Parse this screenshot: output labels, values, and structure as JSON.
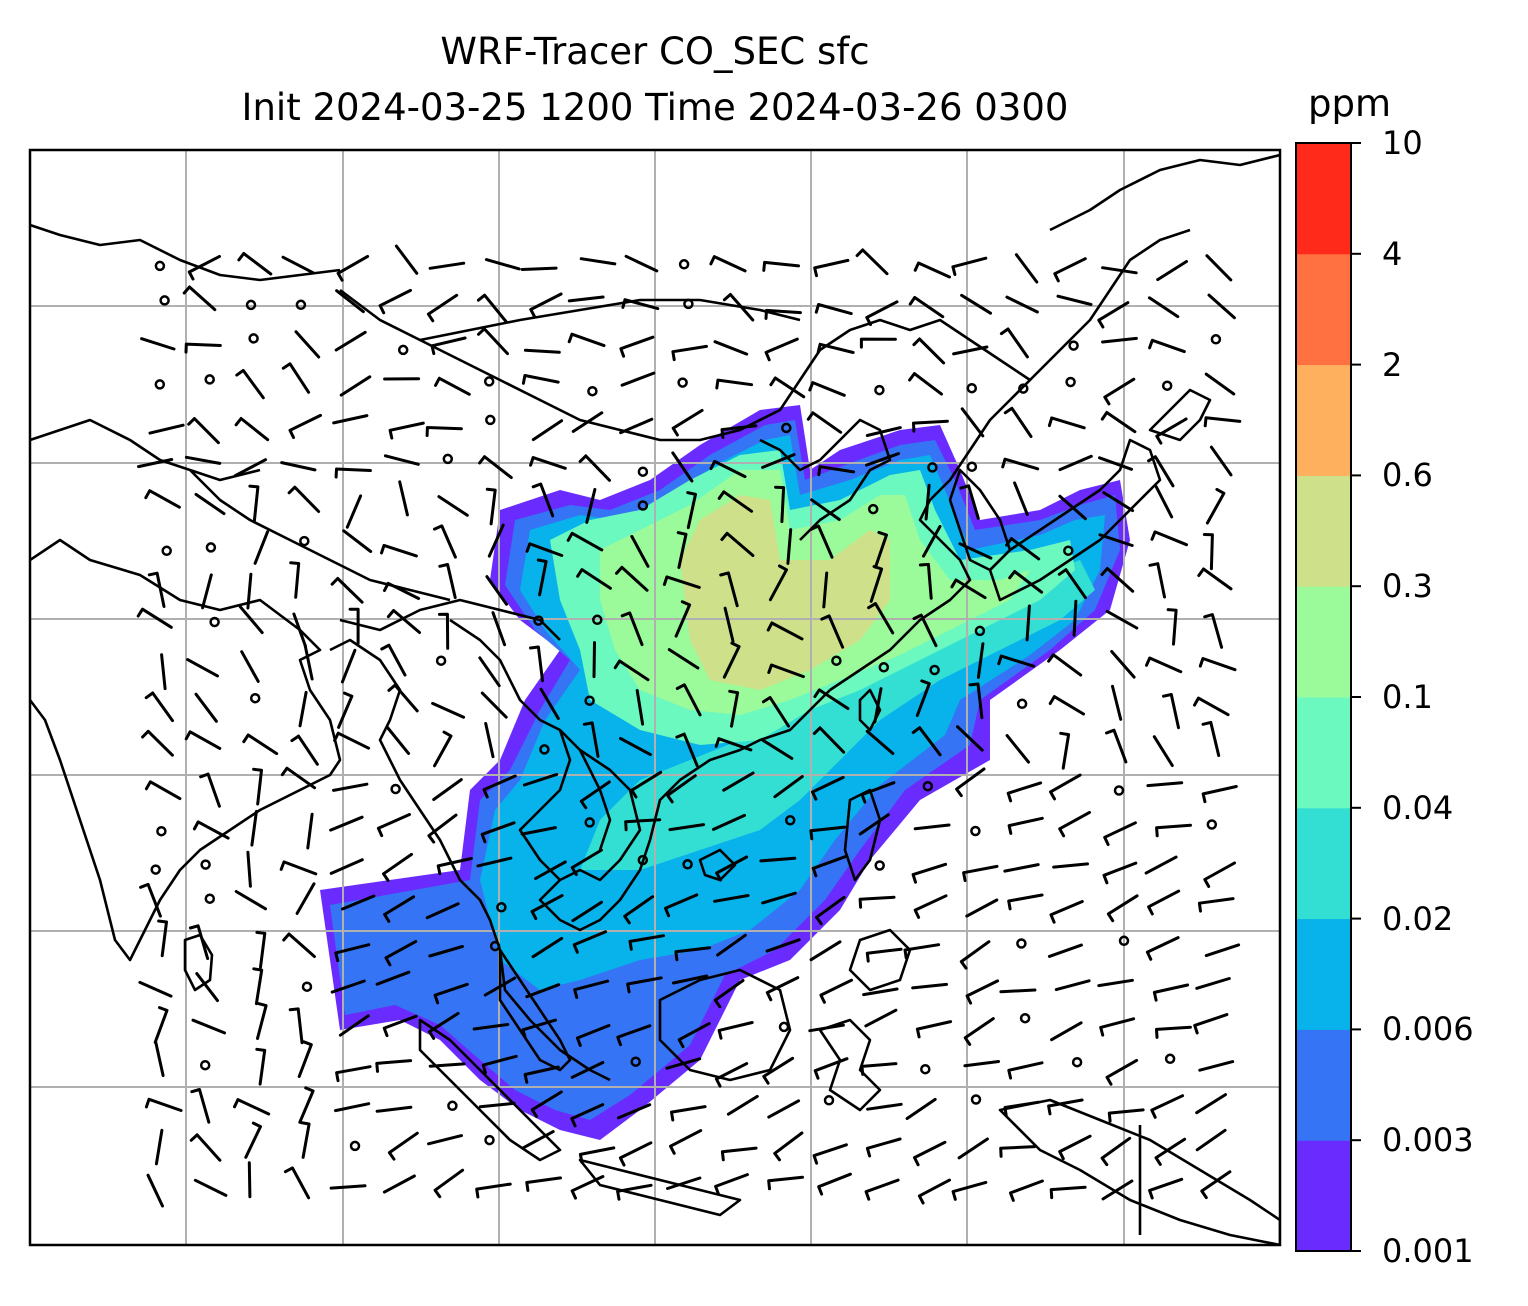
{
  "title": {
    "line1": "WRF-Tracer CO_SEC sfc",
    "line2": "Init 2024-03-25 1200 Time 2024-03-26 0300"
  },
  "colorbar": {
    "unit": "ppm",
    "levels": [
      "0.001",
      "0.003",
      "0.006",
      "0.02",
      "0.04",
      "0.1",
      "0.3",
      "0.6",
      "2",
      "4",
      "10"
    ],
    "colors": [
      "#6a2bff",
      "#3574f4",
      "#08b2ea",
      "#33dfd2",
      "#6bf9c0",
      "#9bfa9a",
      "#cfe08a",
      "#feb05f",
      "#ff7140",
      "#ff2a1a"
    ]
  },
  "map": {
    "coastline_color": "#000000",
    "gridline_color": "#b0b0b0",
    "background_color": "#ffffff",
    "wind_barb_color": "#000000"
  }
}
